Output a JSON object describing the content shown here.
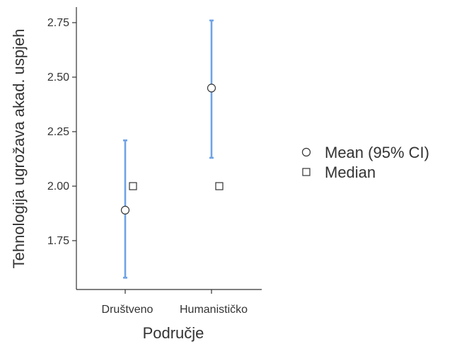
{
  "chart_data": {
    "type": "scatter",
    "xlabel": "Područje",
    "ylabel": "Tehnologija ugrožava akad. uspjeh",
    "categories": [
      "Društveno",
      "Humanističko"
    ],
    "yticks": [
      "1.75",
      "2.00",
      "2.25",
      "2.50",
      "2.75"
    ],
    "ylim": [
      1.47,
      2.83
    ],
    "series": [
      {
        "name": "Mean (95% CI)",
        "marker": "circle",
        "values": [
          1.89,
          2.45
        ],
        "ci_lower": [
          1.58,
          2.13
        ],
        "ci_upper": [
          2.21,
          2.76
        ]
      },
      {
        "name": "Median",
        "marker": "square",
        "values": [
          2.0,
          2.0
        ]
      }
    ],
    "legend_position": "right",
    "grid": false,
    "colors": {
      "ci": "#6fa3e6",
      "marker_fill": "#ffffff",
      "marker_stroke": "#333333",
      "axis": "#333333"
    }
  }
}
